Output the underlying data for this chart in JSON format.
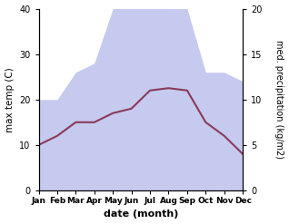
{
  "months": [
    "Jan",
    "Feb",
    "Mar",
    "Apr",
    "May",
    "Jun",
    "Jul",
    "Aug",
    "Sep",
    "Oct",
    "Nov",
    "Dec"
  ],
  "month_positions": [
    0,
    1,
    2,
    3,
    4,
    5,
    6,
    7,
    8,
    9,
    10,
    11
  ],
  "max_temp": [
    10,
    12,
    15,
    15,
    17,
    18,
    22,
    22.5,
    22,
    15,
    12,
    8
  ],
  "precipitation": [
    10,
    10,
    13,
    14,
    20,
    22,
    23.5,
    20,
    20,
    13,
    13,
    12
  ],
  "temp_color": "#8B3A5A",
  "precip_color_fill": "#c5caee",
  "left_ylabel": "max temp (C)",
  "right_ylabel": "med. precipitation (kg/m2)",
  "xlabel": "date (month)",
  "ylim_left": [
    0,
    40
  ],
  "ylim_right": [
    0,
    40
  ],
  "right_yticks_positions": [
    0,
    10,
    20,
    30,
    40
  ],
  "right_ytick_labels": [
    "0",
    "5",
    "10",
    "15",
    "20"
  ],
  "left_yticks": [
    0,
    10,
    20,
    30,
    40
  ],
  "background_color": "#ffffff"
}
